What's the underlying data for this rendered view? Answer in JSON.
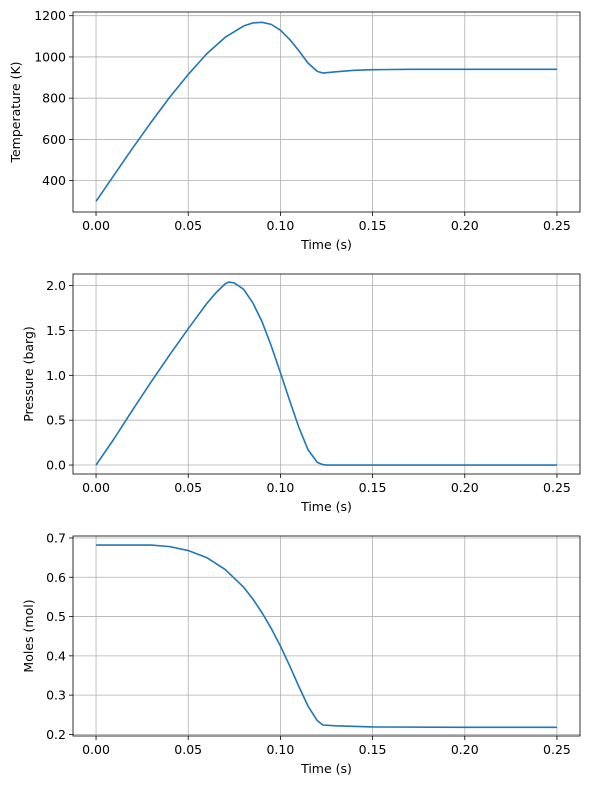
{
  "chart_data": [
    {
      "type": "line",
      "name": "temperature-chart",
      "xlabel": "Time (s)",
      "ylabel": "Temperature (K)",
      "xlim": [
        -0.0125,
        0.2625
      ],
      "ylim": [
        248,
        1218
      ],
      "xticks": [
        0.0,
        0.05,
        0.1,
        0.15,
        0.2,
        0.25
      ],
      "xtick_labels": [
        "0.00",
        "0.05",
        "0.10",
        "0.15",
        "0.20",
        "0.25"
      ],
      "yticks": [
        400,
        600,
        800,
        1000,
        1200
      ],
      "ytick_labels": [
        "400",
        "600",
        "800",
        "1000",
        "1200"
      ],
      "grid": true,
      "color": "#1f77b4",
      "x": [
        0.0,
        0.01,
        0.02,
        0.03,
        0.04,
        0.05,
        0.06,
        0.07,
        0.08,
        0.085,
        0.09,
        0.095,
        0.1,
        0.105,
        0.11,
        0.115,
        0.12,
        0.123,
        0.13,
        0.14,
        0.15,
        0.17,
        0.2,
        0.25
      ],
      "y": [
        300,
        430,
        560,
        685,
        805,
        915,
        1015,
        1095,
        1150,
        1165,
        1168,
        1158,
        1130,
        1085,
        1030,
        970,
        930,
        922,
        928,
        935,
        938,
        940,
        940,
        940
      ]
    },
    {
      "type": "line",
      "name": "pressure-chart",
      "xlabel": "Time (s)",
      "ylabel": "Pressure (barg)",
      "xlim": [
        -0.0125,
        0.2625
      ],
      "ylim": [
        -0.1,
        2.13
      ],
      "xticks": [
        0.0,
        0.05,
        0.1,
        0.15,
        0.2,
        0.25
      ],
      "xtick_labels": [
        "0.00",
        "0.05",
        "0.10",
        "0.15",
        "0.20",
        "0.25"
      ],
      "yticks": [
        0.0,
        0.5,
        1.0,
        1.5,
        2.0
      ],
      "ytick_labels": [
        "0.0",
        "0.5",
        "1.0",
        "1.5",
        "2.0"
      ],
      "grid": true,
      "color": "#1f77b4",
      "x": [
        0.0,
        0.01,
        0.02,
        0.03,
        0.04,
        0.05,
        0.06,
        0.065,
        0.07,
        0.072,
        0.075,
        0.08,
        0.085,
        0.09,
        0.095,
        0.1,
        0.105,
        0.11,
        0.115,
        0.12,
        0.123,
        0.125,
        0.15,
        0.2,
        0.25
      ],
      "y": [
        0.0,
        0.3,
        0.62,
        0.93,
        1.23,
        1.52,
        1.8,
        1.92,
        2.02,
        2.04,
        2.03,
        1.96,
        1.81,
        1.6,
        1.33,
        1.03,
        0.72,
        0.42,
        0.17,
        0.03,
        0.005,
        0.0,
        0.0,
        0.0,
        0.0
      ]
    },
    {
      "type": "line",
      "name": "moles-chart",
      "xlabel": "Time (s)",
      "ylabel": "Moles (mol)",
      "xlim": [
        -0.0125,
        0.2625
      ],
      "ylim": [
        0.196,
        0.705
      ],
      "xticks": [
        0.0,
        0.05,
        0.1,
        0.15,
        0.2,
        0.25
      ],
      "xtick_labels": [
        "0.00",
        "0.05",
        "0.10",
        "0.15",
        "0.20",
        "0.25"
      ],
      "yticks": [
        0.2,
        0.3,
        0.4,
        0.5,
        0.6,
        0.7
      ],
      "ytick_labels": [
        "0.2",
        "0.3",
        "0.4",
        "0.5",
        "0.6",
        "0.7"
      ],
      "grid": true,
      "color": "#1f77b4",
      "x": [
        0.0,
        0.01,
        0.02,
        0.03,
        0.04,
        0.05,
        0.06,
        0.07,
        0.08,
        0.085,
        0.09,
        0.095,
        0.1,
        0.105,
        0.11,
        0.115,
        0.12,
        0.123,
        0.13,
        0.15,
        0.2,
        0.25
      ],
      "y": [
        0.682,
        0.682,
        0.682,
        0.682,
        0.678,
        0.668,
        0.65,
        0.62,
        0.575,
        0.545,
        0.51,
        0.47,
        0.425,
        0.375,
        0.322,
        0.272,
        0.235,
        0.224,
        0.222,
        0.219,
        0.218,
        0.218
      ]
    }
  ]
}
